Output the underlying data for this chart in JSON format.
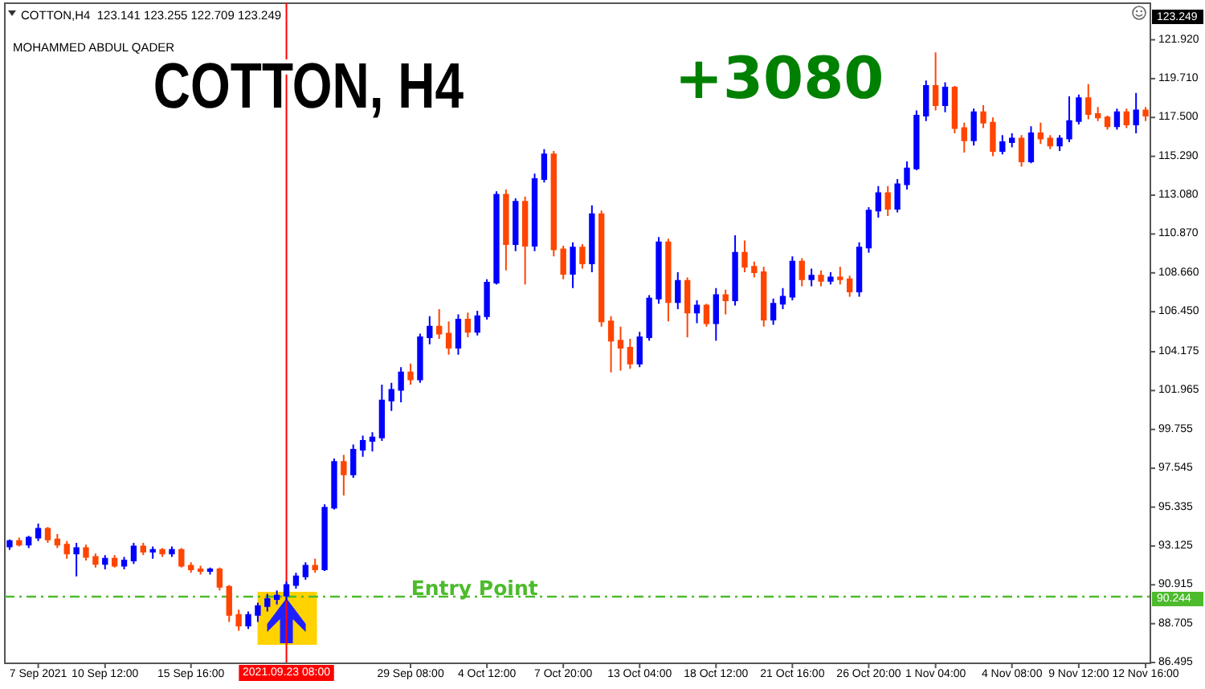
{
  "chart_data": {
    "type": "candlestick",
    "title": "COTTON, H4",
    "subtitle": "COTTON,H4  123.141 123.255 122.709 123.249",
    "annotations": [
      "+3080",
      "MOHAMMED ABDUL QADER",
      "123.249"
    ],
    "categories": [
      null,
      null,
      null,
      "7 Sep 2021",
      null,
      null,
      null,
      null,
      null,
      null,
      "10 Sep 12:00",
      null,
      null,
      null,
      null,
      null,
      null,
      null,
      null,
      "15 Sep 16:00",
      null,
      null,
      null,
      null,
      null,
      null,
      null,
      null,
      null,
      "2021.09.23 08:00",
      null,
      null,
      null,
      null,
      null,
      null,
      null,
      null,
      null,
      null,
      null,
      null,
      "29 Sep 08:00",
      null,
      null,
      null,
      null,
      null,
      null,
      null,
      "4 Oct 12:00",
      null,
      null,
      null,
      null,
      null,
      null,
      null,
      "7 Oct 20:00",
      null,
      null,
      null,
      null,
      null,
      null,
      null,
      "13 Oct 04:00",
      null,
      null,
      null,
      null,
      null,
      null,
      null,
      "18 Oct 12:00",
      null,
      null,
      null,
      null,
      null,
      null,
      null,
      "21 Oct 16:00",
      null,
      null,
      null,
      null,
      null,
      null,
      null,
      "26 Oct 20:00",
      null,
      null,
      null,
      null,
      null,
      null,
      "1 Nov 04:00",
      null,
      null,
      null,
      null,
      null,
      null,
      null,
      "4 Nov 08:00",
      null,
      null,
      null,
      null,
      null,
      null,
      "9 Nov 12:00",
      null,
      null,
      null,
      null,
      null,
      null,
      "12 Nov 16:00"
    ],
    "ohlc": [
      [
        93.1,
        93.5,
        92.9,
        93.4
      ],
      [
        93.4,
        93.6,
        93.1,
        93.2
      ],
      [
        93.2,
        93.7,
        93.0,
        93.6
      ],
      [
        93.6,
        94.4,
        93.4,
        94.1
      ],
      [
        94.1,
        94.2,
        93.3,
        93.5
      ],
      [
        93.5,
        93.8,
        93.0,
        93.2
      ],
      [
        93.2,
        93.4,
        92.4,
        92.7
      ],
      [
        92.7,
        93.3,
        91.4,
        93.0
      ],
      [
        93.0,
        93.2,
        92.3,
        92.5
      ],
      [
        92.5,
        92.7,
        91.9,
        92.1
      ],
      [
        92.1,
        92.6,
        91.8,
        92.4
      ],
      [
        92.4,
        92.6,
        91.9,
        92.0
      ],
      [
        92.0,
        92.5,
        91.8,
        92.3
      ],
      [
        92.3,
        93.3,
        92.1,
        93.1
      ],
      [
        93.1,
        93.3,
        92.6,
        92.8
      ],
      [
        92.8,
        93.1,
        92.4,
        92.9
      ],
      [
        92.9,
        93.0,
        92.5,
        92.7
      ],
      [
        92.7,
        93.1,
        92.5,
        92.9
      ],
      [
        92.9,
        93.0,
        91.9,
        92.0
      ],
      [
        92.0,
        92.2,
        91.6,
        91.8
      ],
      [
        91.8,
        92.0,
        91.5,
        91.7
      ],
      [
        91.7,
        91.9,
        91.5,
        91.8
      ],
      [
        91.8,
        91.9,
        90.6,
        90.8
      ],
      [
        90.8,
        90.9,
        88.8,
        89.2
      ],
      [
        89.2,
        89.5,
        88.3,
        88.6
      ],
      [
        88.6,
        89.4,
        88.4,
        89.2
      ],
      [
        89.2,
        89.9,
        88.8,
        89.7
      ],
      [
        89.7,
        90.4,
        89.4,
        90.1
      ],
      [
        90.1,
        90.6,
        89.8,
        90.3
      ],
      [
        90.3,
        91.1,
        90.0,
        90.9
      ],
      [
        90.9,
        91.6,
        90.7,
        91.4
      ],
      [
        91.4,
        92.2,
        91.2,
        92.0
      ],
      [
        92.0,
        92.4,
        91.6,
        91.8
      ],
      [
        91.8,
        95.5,
        91.7,
        95.3
      ],
      [
        95.3,
        98.1,
        95.2,
        97.9
      ],
      [
        97.9,
        98.3,
        96.0,
        97.2
      ],
      [
        97.2,
        98.9,
        97.0,
        98.6
      ],
      [
        98.6,
        99.4,
        98.2,
        99.1
      ],
      [
        99.1,
        99.6,
        98.5,
        99.3
      ],
      [
        99.3,
        102.3,
        99.1,
        101.4
      ],
      [
        101.4,
        102.4,
        100.8,
        102.0
      ],
      [
        102.0,
        103.3,
        101.3,
        103.0
      ],
      [
        103.0,
        103.5,
        102.3,
        102.6
      ],
      [
        102.6,
        105.2,
        102.4,
        105.0
      ],
      [
        105.0,
        106.2,
        104.6,
        105.6
      ],
      [
        105.6,
        106.6,
        104.9,
        105.2
      ],
      [
        105.2,
        105.9,
        104.0,
        104.4
      ],
      [
        104.4,
        106.3,
        104.0,
        106.0
      ],
      [
        106.0,
        106.4,
        105.0,
        105.3
      ],
      [
        105.3,
        106.5,
        105.1,
        106.2
      ],
      [
        106.2,
        108.3,
        106.0,
        108.1
      ],
      [
        108.1,
        113.3,
        108.0,
        113.1
      ],
      [
        113.1,
        113.4,
        108.8,
        110.3
      ],
      [
        110.3,
        112.9,
        109.9,
        112.7
      ],
      [
        112.7,
        113.0,
        108.0,
        110.2
      ],
      [
        110.2,
        114.3,
        109.9,
        114.0
      ],
      [
        114.0,
        115.7,
        113.8,
        115.4
      ],
      [
        115.4,
        115.6,
        109.6,
        110.0
      ],
      [
        110.0,
        110.2,
        108.3,
        108.6
      ],
      [
        108.6,
        110.4,
        107.8,
        110.1
      ],
      [
        110.1,
        110.3,
        108.9,
        109.2
      ],
      [
        109.2,
        112.5,
        108.7,
        112.0
      ],
      [
        112.0,
        112.2,
        105.6,
        105.9
      ],
      [
        105.9,
        106.2,
        103.0,
        104.8
      ],
      [
        104.8,
        105.6,
        103.1,
        104.4
      ],
      [
        104.4,
        104.9,
        103.2,
        103.5
      ],
      [
        103.5,
        105.3,
        103.3,
        105.0
      ],
      [
        105.0,
        107.4,
        104.8,
        107.2
      ],
      [
        107.2,
        110.7,
        106.9,
        110.4
      ],
      [
        110.4,
        110.6,
        105.9,
        107.0
      ],
      [
        107.0,
        108.7,
        106.6,
        108.2
      ],
      [
        108.2,
        108.4,
        105.0,
        106.4
      ],
      [
        106.4,
        107.1,
        105.8,
        106.8
      ],
      [
        106.8,
        106.9,
        105.6,
        105.8
      ],
      [
        105.8,
        107.8,
        104.8,
        107.4
      ],
      [
        107.4,
        107.7,
        106.3,
        107.1
      ],
      [
        107.1,
        110.8,
        106.8,
        109.8
      ],
      [
        109.8,
        110.5,
        108.7,
        109.0
      ],
      [
        109.0,
        109.3,
        108.4,
        108.7
      ],
      [
        108.7,
        109.0,
        105.6,
        106.0
      ],
      [
        106.0,
        107.2,
        105.7,
        106.9
      ],
      [
        106.9,
        107.8,
        106.6,
        107.3
      ],
      [
        107.3,
        109.6,
        107.1,
        109.3
      ],
      [
        109.3,
        109.5,
        107.9,
        108.3
      ],
      [
        108.3,
        108.9,
        107.9,
        108.5
      ],
      [
        108.5,
        108.8,
        107.9,
        108.2
      ],
      [
        108.2,
        108.7,
        108.0,
        108.4
      ],
      [
        108.4,
        109.0,
        108.0,
        108.3
      ],
      [
        108.3,
        108.5,
        107.3,
        107.6
      ],
      [
        107.6,
        110.4,
        107.3,
        110.1
      ],
      [
        110.1,
        112.4,
        109.8,
        112.2
      ],
      [
        112.2,
        113.6,
        111.8,
        113.2
      ],
      [
        113.2,
        113.6,
        111.9,
        112.3
      ],
      [
        112.3,
        114.0,
        112.1,
        113.7
      ],
      [
        113.7,
        115.0,
        113.4,
        114.6
      ],
      [
        114.6,
        117.9,
        114.5,
        117.6
      ],
      [
        117.6,
        119.6,
        117.3,
        119.3
      ],
      [
        119.3,
        121.2,
        117.9,
        118.2
      ],
      [
        118.2,
        119.5,
        117.8,
        119.2
      ],
      [
        119.2,
        119.3,
        116.6,
        116.9
      ],
      [
        116.9,
        117.2,
        115.5,
        116.2
      ],
      [
        116.2,
        118.0,
        115.9,
        117.8
      ],
      [
        117.8,
        118.2,
        116.9,
        117.2
      ],
      [
        117.2,
        117.5,
        115.3,
        115.6
      ],
      [
        115.6,
        116.5,
        115.4,
        116.1
      ],
      [
        116.1,
        116.6,
        115.8,
        116.3
      ],
      [
        116.3,
        116.5,
        114.7,
        115.0
      ],
      [
        115.0,
        117.0,
        114.9,
        116.6
      ],
      [
        116.6,
        117.2,
        116.0,
        116.3
      ],
      [
        116.3,
        116.5,
        115.7,
        115.9
      ],
      [
        115.9,
        116.5,
        115.6,
        116.3
      ],
      [
        116.3,
        118.7,
        116.1,
        117.3
      ],
      [
        117.3,
        118.8,
        117.1,
        118.6
      ],
      [
        118.6,
        119.4,
        117.4,
        117.7
      ],
      [
        117.7,
        118.1,
        117.3,
        117.5
      ],
      [
        117.5,
        117.6,
        116.8,
        117.0
      ],
      [
        117.0,
        118.0,
        116.8,
        117.8
      ],
      [
        117.8,
        118.0,
        116.9,
        117.1
      ],
      [
        117.1,
        118.9,
        116.6,
        117.9
      ],
      [
        117.9,
        118.1,
        117.3,
        117.6
      ]
    ],
    "colors": [
      "#0000ff",
      "#ff4500",
      "#0000ff",
      "#0000ff",
      "#ff4500",
      "#ff4500",
      "#ff4500",
      "#0000ff",
      "#ff4500",
      "#ff4500",
      "#0000ff",
      "#ff4500",
      "#0000ff",
      "#0000ff",
      "#ff4500",
      "#0000ff",
      "#ff4500",
      "#0000ff",
      "#ff4500",
      "#ff4500",
      "#ff4500",
      "#0000ff",
      "#ff4500",
      "#ff4500",
      "#ff4500",
      "#0000ff",
      "#0000ff",
      "#0000ff",
      "#0000ff",
      "#0000ff",
      "#0000ff",
      "#0000ff",
      "#ff4500",
      "#0000ff",
      "#0000ff",
      "#ff4500",
      "#0000ff",
      "#0000ff",
      "#0000ff",
      "#0000ff",
      "#0000ff",
      "#0000ff",
      "#ff4500",
      "#0000ff",
      "#0000ff",
      "#ff4500",
      "#ff4500",
      "#0000ff",
      "#ff4500",
      "#0000ff",
      "#0000ff",
      "#0000ff",
      "#ff4500",
      "#0000ff",
      "#ff4500",
      "#0000ff",
      "#0000ff",
      "#ff4500",
      "#ff4500",
      "#0000ff",
      "#ff4500",
      "#0000ff",
      "#ff4500",
      "#ff4500",
      "#ff4500",
      "#ff4500",
      "#0000ff",
      "#0000ff",
      "#0000ff",
      "#ff4500",
      "#0000ff",
      "#ff4500",
      "#0000ff",
      "#ff4500",
      "#0000ff",
      "#ff4500",
      "#0000ff",
      "#ff4500",
      "#ff4500",
      "#ff4500",
      "#0000ff",
      "#0000ff",
      "#0000ff",
      "#ff4500",
      "#0000ff",
      "#ff4500",
      "#0000ff",
      "#ff4500",
      "#ff4500",
      "#0000ff",
      "#0000ff",
      "#0000ff",
      "#ff4500",
      "#0000ff",
      "#0000ff",
      "#0000ff",
      "#0000ff",
      "#ff4500",
      "#0000ff",
      "#ff4500",
      "#ff4500",
      "#0000ff",
      "#ff4500",
      "#ff4500",
      "#0000ff",
      "#0000ff",
      "#ff4500",
      "#0000ff",
      "#ff4500",
      "#ff4500",
      "#0000ff",
      "#0000ff",
      "#0000ff",
      "#ff4500",
      "#ff4500",
      "#ff4500",
      "#0000ff",
      "#ff4500",
      "#0000ff",
      "#ff4500"
    ],
    "ylim": [
      86.45,
      124.0
    ],
    "yticks": [
      {
        "value": 121.92,
        "label": "121.920"
      },
      {
        "value": 119.71,
        "label": "119.710"
      },
      {
        "value": 117.5,
        "label": "117.500"
      },
      {
        "value": 115.29,
        "label": "115.290"
      },
      {
        "value": 113.08,
        "label": "113.080"
      },
      {
        "value": 110.87,
        "label": "110.870"
      },
      {
        "value": 108.66,
        "label": "108.660"
      },
      {
        "value": 106.45,
        "label": "106.450"
      },
      104.175,
      101.965,
      99.755,
      97.545,
      95.335,
      93.125,
      90.915,
      90.244,
      88.705,
      86.495
    ],
    "ref_lines": [
      {
        "axis": "x",
        "value": "2021.09.23 08:00",
        "color": "#ff0000"
      },
      {
        "axis": "y",
        "value": 90.244,
        "label": "Entry Point",
        "color": "#4cbb2c",
        "line_style": "dashed"
      }
    ]
  }
}
